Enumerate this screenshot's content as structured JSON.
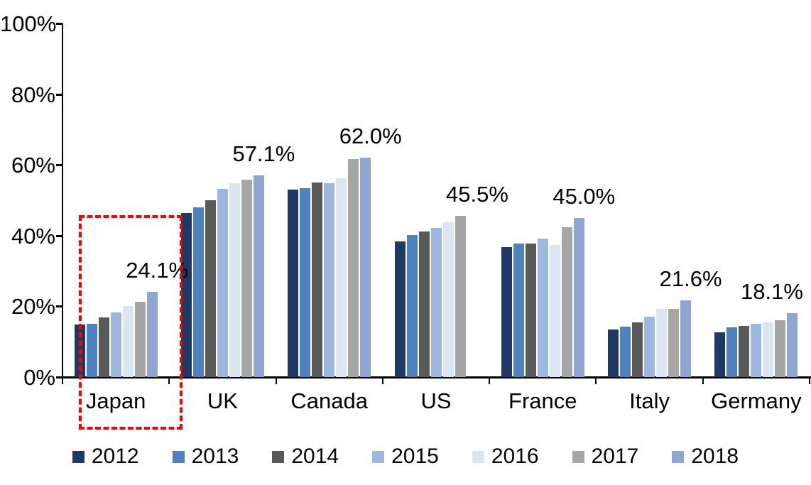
{
  "chart_data": {
    "type": "bar",
    "title": "",
    "xlabel": "",
    "ylabel": "",
    "categories": [
      "Japan",
      "UK",
      "Canada",
      "US",
      "France",
      "Italy",
      "Germany"
    ],
    "series": [
      {
        "name": "2012",
        "color": "#1F3864",
        "values": [
          14.9,
          46.4,
          53.0,
          38.3,
          36.7,
          13.4,
          12.6
        ]
      },
      {
        "name": "2013",
        "color": "#4E81BD",
        "values": [
          15.0,
          48.0,
          53.5,
          40.2,
          37.7,
          14.3,
          14.1
        ]
      },
      {
        "name": "2014",
        "color": "#595959",
        "values": [
          16.8,
          50.1,
          55.0,
          41.2,
          37.7,
          15.5,
          14.5
        ]
      },
      {
        "name": "2015",
        "color": "#9DB7DE",
        "values": [
          18.3,
          53.3,
          54.8,
          42.2,
          39.2,
          17.0,
          15.0
        ]
      },
      {
        "name": "2016",
        "color": "#DCE5F2",
        "values": [
          20.1,
          54.9,
          56.2,
          43.8,
          37.3,
          19.2,
          15.5
        ]
      },
      {
        "name": "2017",
        "color": "#A6A6A6",
        "values": [
          21.2,
          55.9,
          61.7,
          45.5,
          42.4,
          19.3,
          16.0
        ]
      },
      {
        "name": "2018",
        "color": "#8FA5D2",
        "values": [
          24.1,
          57.1,
          62.0,
          null,
          45.0,
          21.6,
          18.1
        ]
      }
    ],
    "data_labels": [
      "24.1%",
      "57.1%",
      "62.0%",
      "45.5%",
      "45.0%",
      "21.6%",
      "18.1%"
    ],
    "y_ticks": [
      "0%",
      "20%",
      "40%",
      "60%",
      "80%",
      "100%"
    ],
    "ylim": [
      0,
      100
    ],
    "grid": false,
    "legend_position": "bottom",
    "highlight": {
      "category": "Japan",
      "style": "red-dashed-box",
      "color": "#FF0000"
    }
  }
}
